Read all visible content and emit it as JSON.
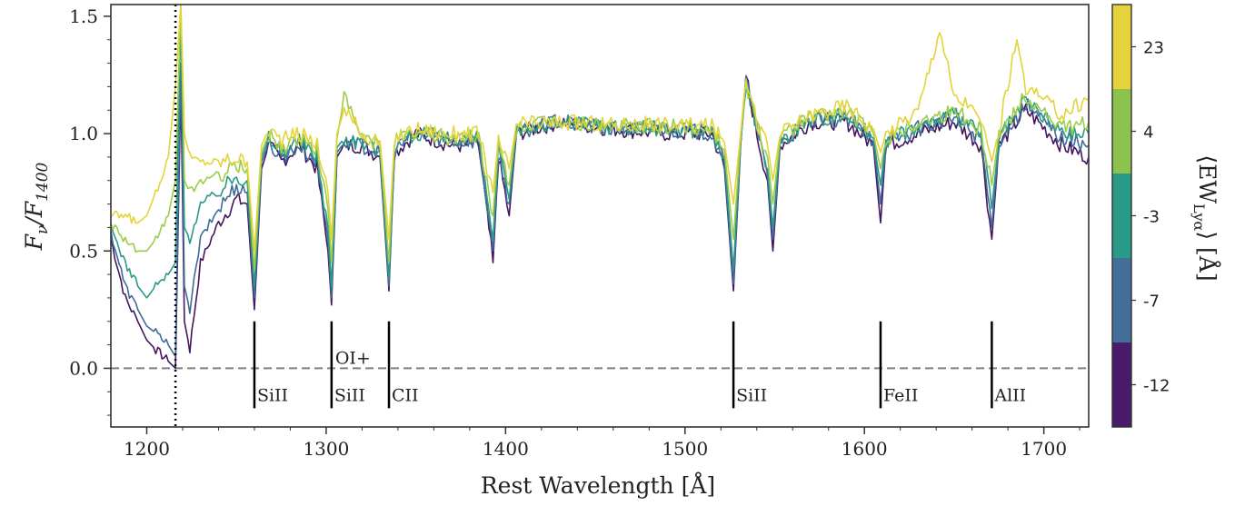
{
  "chart_data": {
    "type": "line",
    "xlabel": "Rest Wavelength [Å]",
    "ylabel": "F_ν/F_1400",
    "xlim": [
      1180,
      1725
    ],
    "ylim": [
      -0.25,
      1.55
    ],
    "x_ticks": [
      1200,
      1300,
      1400,
      1500,
      1600,
      1700
    ],
    "y_ticks": [
      0.0,
      0.5,
      1.0,
      1.5
    ],
    "y_tick_labels": [
      "0.0",
      "0.5",
      "1.0",
      "1.5"
    ],
    "zero_line": 0.0,
    "lya_marker": 1216,
    "absorption_lines": [
      {
        "x": 1260,
        "label": "SiII"
      },
      {
        "x": 1303,
        "label": "SiII",
        "upper_label": "OI+"
      },
      {
        "x": 1335,
        "label": "CII"
      },
      {
        "x": 1527,
        "label": "SiII"
      },
      {
        "x": 1609,
        "label": "FeII"
      },
      {
        "x": 1671,
        "label": "AlII"
      }
    ],
    "colorbar": {
      "label": "⟨EW_Lyα⟩ [Å]",
      "bins": [
        "-12",
        "-7",
        "-3",
        "4",
        "23"
      ],
      "colors": [
        "#4a1a6b",
        "#436e99",
        "#2a9a88",
        "#8cc34f",
        "#e6d23b"
      ]
    },
    "series": [
      {
        "color": "#44165f",
        "points": [
          [
            1180,
            0.55
          ],
          [
            1188,
            0.3
          ],
          [
            1195,
            0.2
          ],
          [
            1200,
            0.12
          ],
          [
            1205,
            0.08
          ],
          [
            1212,
            0.03
          ],
          [
            1216,
            0.0
          ],
          [
            1219,
            1.2
          ],
          [
            1221,
            0.2
          ],
          [
            1224,
            0.08
          ],
          [
            1230,
            0.45
          ],
          [
            1240,
            0.62
          ],
          [
            1250,
            0.72
          ],
          [
            1256,
            0.7
          ],
          [
            1260,
            0.25
          ],
          [
            1264,
            0.85
          ],
          [
            1268,
            0.95
          ],
          [
            1275,
            0.88
          ],
          [
            1285,
            0.95
          ],
          [
            1295,
            0.85
          ],
          [
            1301,
            0.5
          ],
          [
            1303,
            0.27
          ],
          [
            1306,
            0.9
          ],
          [
            1310,
            0.95
          ],
          [
            1320,
            0.95
          ],
          [
            1330,
            0.9
          ],
          [
            1335,
            0.33
          ],
          [
            1338,
            0.92
          ],
          [
            1350,
            1.0
          ],
          [
            1370,
            0.95
          ],
          [
            1385,
            0.95
          ],
          [
            1393,
            0.45
          ],
          [
            1396,
            0.9
          ],
          [
            1402,
            0.65
          ],
          [
            1406,
            1.0
          ],
          [
            1430,
            1.05
          ],
          [
            1460,
            1.02
          ],
          [
            1490,
            1.0
          ],
          [
            1515,
            1.0
          ],
          [
            1522,
            0.85
          ],
          [
            1527,
            0.33
          ],
          [
            1531,
            0.95
          ],
          [
            1534,
            1.25
          ],
          [
            1540,
            1.0
          ],
          [
            1546,
            0.8
          ],
          [
            1549,
            0.5
          ],
          [
            1553,
            0.95
          ],
          [
            1570,
            1.05
          ],
          [
            1590,
            1.05
          ],
          [
            1605,
            0.95
          ],
          [
            1609,
            0.62
          ],
          [
            1612,
            0.95
          ],
          [
            1630,
            1.0
          ],
          [
            1650,
            1.05
          ],
          [
            1665,
            0.95
          ],
          [
            1671,
            0.55
          ],
          [
            1675,
            0.95
          ],
          [
            1690,
            1.1
          ],
          [
            1710,
            0.95
          ],
          [
            1725,
            0.9
          ]
        ]
      },
      {
        "color": "#3f6a9a",
        "points": [
          [
            1180,
            0.58
          ],
          [
            1188,
            0.35
          ],
          [
            1195,
            0.25
          ],
          [
            1200,
            0.18
          ],
          [
            1205,
            0.15
          ],
          [
            1212,
            0.1
          ],
          [
            1216,
            0.05
          ],
          [
            1219,
            1.3
          ],
          [
            1221,
            0.35
          ],
          [
            1224,
            0.25
          ],
          [
            1230,
            0.55
          ],
          [
            1240,
            0.68
          ],
          [
            1250,
            0.78
          ],
          [
            1256,
            0.75
          ],
          [
            1260,
            0.3
          ],
          [
            1264,
            0.88
          ],
          [
            1268,
            0.96
          ],
          [
            1275,
            0.9
          ],
          [
            1285,
            0.95
          ],
          [
            1295,
            0.88
          ],
          [
            1301,
            0.55
          ],
          [
            1303,
            0.3
          ],
          [
            1306,
            0.92
          ],
          [
            1310,
            0.96
          ],
          [
            1320,
            0.95
          ],
          [
            1330,
            0.92
          ],
          [
            1335,
            0.35
          ],
          [
            1338,
            0.93
          ],
          [
            1350,
            1.0
          ],
          [
            1370,
            0.97
          ],
          [
            1385,
            0.97
          ],
          [
            1393,
            0.5
          ],
          [
            1396,
            0.92
          ],
          [
            1402,
            0.7
          ],
          [
            1406,
            1.0
          ],
          [
            1430,
            1.05
          ],
          [
            1460,
            1.02
          ],
          [
            1490,
            1.02
          ],
          [
            1515,
            1.0
          ],
          [
            1522,
            0.87
          ],
          [
            1527,
            0.36
          ],
          [
            1531,
            0.96
          ],
          [
            1534,
            1.22
          ],
          [
            1540,
            1.02
          ],
          [
            1546,
            0.82
          ],
          [
            1549,
            0.55
          ],
          [
            1553,
            0.96
          ],
          [
            1570,
            1.05
          ],
          [
            1590,
            1.06
          ],
          [
            1605,
            0.97
          ],
          [
            1609,
            0.7
          ],
          [
            1612,
            0.96
          ],
          [
            1630,
            1.02
          ],
          [
            1650,
            1.07
          ],
          [
            1665,
            0.98
          ],
          [
            1671,
            0.6
          ],
          [
            1675,
            0.97
          ],
          [
            1690,
            1.12
          ],
          [
            1710,
            0.98
          ],
          [
            1725,
            0.95
          ]
        ]
      },
      {
        "color": "#2a9a88",
        "points": [
          [
            1180,
            0.6
          ],
          [
            1188,
            0.45
          ],
          [
            1195,
            0.35
          ],
          [
            1200,
            0.3
          ],
          [
            1205,
            0.35
          ],
          [
            1212,
            0.4
          ],
          [
            1216,
            0.45
          ],
          [
            1219,
            1.5
          ],
          [
            1221,
            0.6
          ],
          [
            1224,
            0.55
          ],
          [
            1230,
            0.7
          ],
          [
            1240,
            0.75
          ],
          [
            1250,
            0.82
          ],
          [
            1256,
            0.8
          ],
          [
            1260,
            0.35
          ],
          [
            1264,
            0.9
          ],
          [
            1268,
            0.98
          ],
          [
            1275,
            0.92
          ],
          [
            1285,
            0.97
          ],
          [
            1295,
            0.9
          ],
          [
            1301,
            0.6
          ],
          [
            1303,
            0.35
          ],
          [
            1306,
            0.94
          ],
          [
            1310,
            0.98
          ],
          [
            1320,
            0.96
          ],
          [
            1330,
            0.93
          ],
          [
            1335,
            0.38
          ],
          [
            1338,
            0.95
          ],
          [
            1350,
            1.0
          ],
          [
            1370,
            0.98
          ],
          [
            1385,
            0.98
          ],
          [
            1393,
            0.55
          ],
          [
            1396,
            0.93
          ],
          [
            1402,
            0.72
          ],
          [
            1406,
            1.02
          ],
          [
            1430,
            1.05
          ],
          [
            1460,
            1.03
          ],
          [
            1490,
            1.02
          ],
          [
            1515,
            1.01
          ],
          [
            1522,
            0.9
          ],
          [
            1527,
            0.42
          ],
          [
            1531,
            0.97
          ],
          [
            1534,
            1.2
          ],
          [
            1540,
            1.03
          ],
          [
            1546,
            0.85
          ],
          [
            1549,
            0.6
          ],
          [
            1553,
            0.97
          ],
          [
            1570,
            1.06
          ],
          [
            1590,
            1.08
          ],
          [
            1605,
            0.98
          ],
          [
            1609,
            0.78
          ],
          [
            1612,
            0.97
          ],
          [
            1630,
            1.03
          ],
          [
            1650,
            1.08
          ],
          [
            1665,
            1.0
          ],
          [
            1671,
            0.68
          ],
          [
            1675,
            0.98
          ],
          [
            1690,
            1.14
          ],
          [
            1710,
            1.0
          ],
          [
            1725,
            1.0
          ]
        ]
      },
      {
        "color": "#9ccc48",
        "points": [
          [
            1180,
            0.62
          ],
          [
            1188,
            0.55
          ],
          [
            1195,
            0.5
          ],
          [
            1200,
            0.5
          ],
          [
            1205,
            0.55
          ],
          [
            1212,
            0.65
          ],
          [
            1216,
            0.8
          ],
          [
            1219,
            1.55
          ],
          [
            1221,
            0.8
          ],
          [
            1224,
            0.75
          ],
          [
            1230,
            0.8
          ],
          [
            1240,
            0.82
          ],
          [
            1250,
            0.86
          ],
          [
            1256,
            0.85
          ],
          [
            1260,
            0.42
          ],
          [
            1264,
            0.92
          ],
          [
            1268,
            1.0
          ],
          [
            1275,
            0.94
          ],
          [
            1285,
            0.98
          ],
          [
            1295,
            0.93
          ],
          [
            1301,
            0.68
          ],
          [
            1303,
            0.45
          ],
          [
            1306,
            0.98
          ],
          [
            1310,
            1.15
          ],
          [
            1320,
            0.98
          ],
          [
            1330,
            0.95
          ],
          [
            1335,
            0.45
          ],
          [
            1338,
            0.97
          ],
          [
            1350,
            1.0
          ],
          [
            1370,
            0.98
          ],
          [
            1385,
            0.99
          ],
          [
            1393,
            0.65
          ],
          [
            1396,
            0.95
          ],
          [
            1402,
            0.78
          ],
          [
            1406,
            1.03
          ],
          [
            1430,
            1.05
          ],
          [
            1460,
            1.03
          ],
          [
            1490,
            1.03
          ],
          [
            1515,
            1.02
          ],
          [
            1522,
            0.93
          ],
          [
            1527,
            0.55
          ],
          [
            1531,
            0.98
          ],
          [
            1534,
            1.22
          ],
          [
            1540,
            1.04
          ],
          [
            1546,
            0.9
          ],
          [
            1549,
            0.7
          ],
          [
            1553,
            0.98
          ],
          [
            1570,
            1.07
          ],
          [
            1590,
            1.1
          ],
          [
            1605,
            1.0
          ],
          [
            1609,
            0.85
          ],
          [
            1612,
            0.98
          ],
          [
            1630,
            1.05
          ],
          [
            1650,
            1.1
          ],
          [
            1665,
            1.02
          ],
          [
            1671,
            0.78
          ],
          [
            1675,
            1.0
          ],
          [
            1690,
            1.16
          ],
          [
            1710,
            1.02
          ],
          [
            1725,
            1.05
          ]
        ]
      },
      {
        "color": "#e3d43a",
        "points": [
          [
            1180,
            0.65
          ],
          [
            1188,
            0.65
          ],
          [
            1195,
            0.62
          ],
          [
            1200,
            0.65
          ],
          [
            1205,
            0.75
          ],
          [
            1212,
            0.9
          ],
          [
            1216,
            1.2
          ],
          [
            1219,
            1.55
          ],
          [
            1221,
            1.0
          ],
          [
            1224,
            0.9
          ],
          [
            1230,
            0.88
          ],
          [
            1240,
            0.88
          ],
          [
            1250,
            0.9
          ],
          [
            1256,
            0.88
          ],
          [
            1260,
            0.5
          ],
          [
            1264,
            0.95
          ],
          [
            1268,
            1.02
          ],
          [
            1275,
            0.97
          ],
          [
            1285,
            1.0
          ],
          [
            1295,
            0.96
          ],
          [
            1301,
            0.75
          ],
          [
            1303,
            0.55
          ],
          [
            1306,
            1.0
          ],
          [
            1310,
            1.1
          ],
          [
            1320,
            1.0
          ],
          [
            1330,
            0.97
          ],
          [
            1335,
            0.55
          ],
          [
            1338,
            0.98
          ],
          [
            1350,
            1.02
          ],
          [
            1370,
            1.0
          ],
          [
            1385,
            1.0
          ],
          [
            1393,
            0.75
          ],
          [
            1396,
            0.97
          ],
          [
            1402,
            0.85
          ],
          [
            1406,
            1.04
          ],
          [
            1430,
            1.05
          ],
          [
            1460,
            1.04
          ],
          [
            1490,
            1.04
          ],
          [
            1515,
            1.03
          ],
          [
            1522,
            0.96
          ],
          [
            1527,
            0.7
          ],
          [
            1531,
            1.0
          ],
          [
            1534,
            1.25
          ],
          [
            1540,
            1.05
          ],
          [
            1546,
            0.95
          ],
          [
            1549,
            0.8
          ],
          [
            1553,
            1.0
          ],
          [
            1570,
            1.08
          ],
          [
            1590,
            1.12
          ],
          [
            1605,
            1.02
          ],
          [
            1609,
            0.92
          ],
          [
            1612,
            1.0
          ],
          [
            1630,
            1.1
          ],
          [
            1642,
            1.45
          ],
          [
            1650,
            1.15
          ],
          [
            1660,
            1.12
          ],
          [
            1665,
            1.05
          ],
          [
            1671,
            0.88
          ],
          [
            1675,
            1.02
          ],
          [
            1685,
            1.4
          ],
          [
            1690,
            1.2
          ],
          [
            1710,
            1.08
          ],
          [
            1725,
            1.15
          ]
        ]
      }
    ]
  }
}
